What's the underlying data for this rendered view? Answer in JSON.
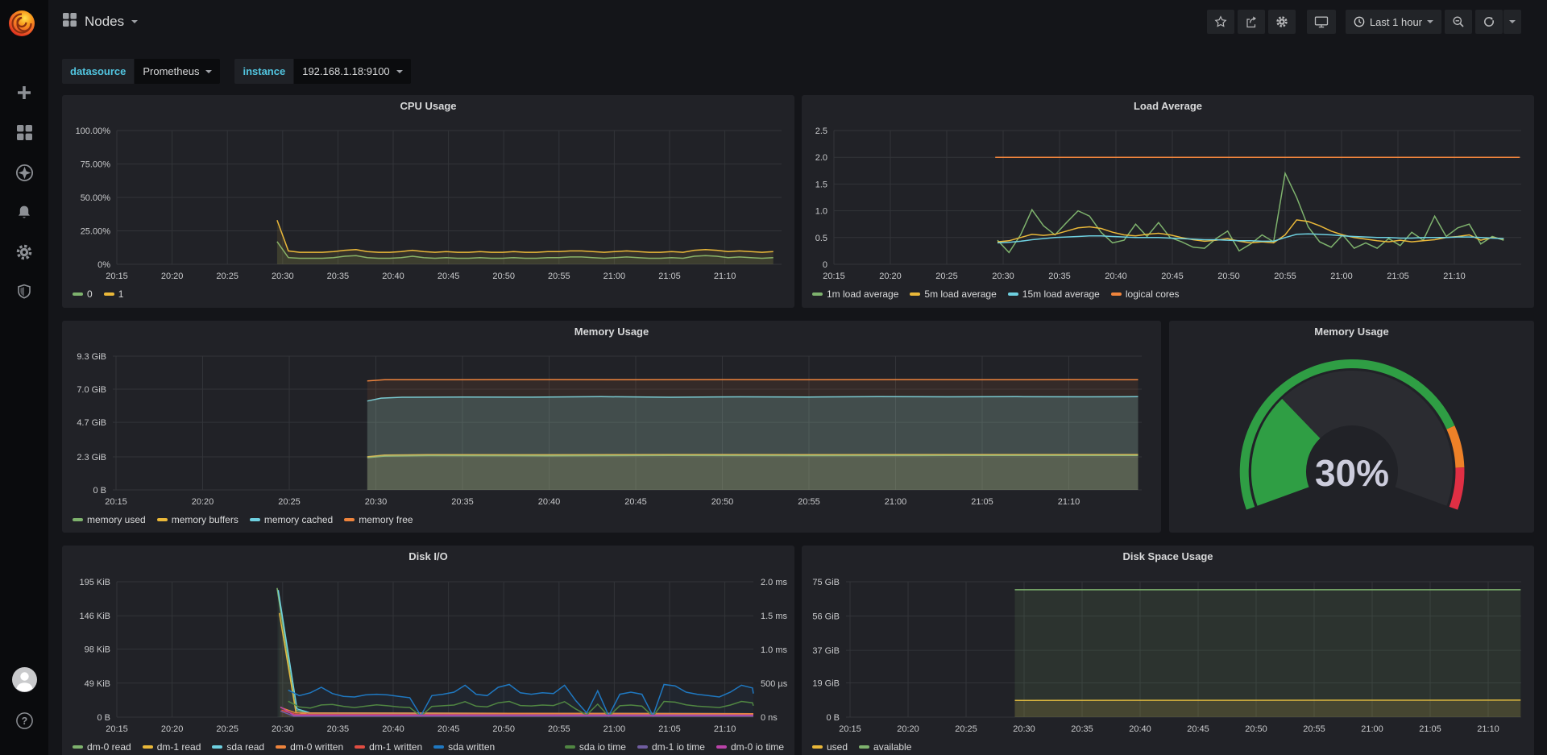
{
  "nav": {
    "title": "Nodes",
    "time_range": "Last 1 hour"
  },
  "variables": [
    {
      "label": "datasource",
      "value": "Prometheus"
    },
    {
      "label": "instance",
      "value": "192.168.1.18:9100"
    }
  ],
  "chart_data": [
    {
      "id": "cpu",
      "type": "line",
      "title": "CPU Usage",
      "ylim": [
        0,
        100
      ],
      "yticks": [
        {
          "label": "0%",
          "v": 0
        },
        {
          "label": "25.00%",
          "v": 25
        },
        {
          "label": "50.00%",
          "v": 50
        },
        {
          "label": "75.00%",
          "v": 75
        },
        {
          "label": "100.00%",
          "v": 100
        }
      ],
      "xlabels": [
        "20:15",
        "20:20",
        "20:25",
        "20:30",
        "20:35",
        "20:40",
        "20:45",
        "20:50",
        "20:55",
        "21:00",
        "21:05",
        "21:10"
      ],
      "series": [
        {
          "name": "0",
          "color": "#7EB26D",
          "fill": 0.1,
          "t0": 14.5,
          "dt": 1.02,
          "v": [
            17,
            5,
            4.5,
            4.5,
            4.5,
            5,
            6,
            6.5,
            5,
            4.5,
            4.5,
            5,
            6,
            5,
            4.5,
            5,
            4.5,
            4.5,
            5,
            4.5,
            4.5,
            5,
            4.5,
            4.5,
            5,
            5,
            5.5,
            5.5,
            5,
            4.5,
            5,
            5.5,
            5,
            4.5,
            4.5,
            5,
            4.5,
            6,
            6.5,
            6,
            5,
            5.5,
            5,
            4.5,
            5
          ]
        },
        {
          "name": "1",
          "color": "#EAB839",
          "fill": 0.1,
          "t0": 14.5,
          "dt": 1.02,
          "v": [
            33,
            10,
            9,
            9,
            9,
            9.5,
            10.5,
            11,
            9.5,
            9,
            9,
            9.5,
            10.5,
            9.5,
            9,
            9.5,
            9,
            9,
            9.5,
            9,
            9,
            9.5,
            9,
            9,
            9.5,
            9.5,
            10,
            10,
            9.5,
            9,
            9.5,
            10,
            9.5,
            9,
            9,
            9.5,
            9,
            10.5,
            11,
            10.5,
            9.5,
            10,
            9.5,
            9,
            9.5
          ]
        }
      ]
    },
    {
      "id": "load",
      "type": "line",
      "title": "Load Average",
      "ylim": [
        0,
        2.5
      ],
      "yticks": [
        {
          "label": "0",
          "v": 0
        },
        {
          "label": "0.5",
          "v": 0.5
        },
        {
          "label": "1.0",
          "v": 1
        },
        {
          "label": "1.5",
          "v": 1.5
        },
        {
          "label": "2.0",
          "v": 2
        },
        {
          "label": "2.5",
          "v": 2.5
        }
      ],
      "xlabels": [
        "20:15",
        "20:20",
        "20:25",
        "20:30",
        "20:35",
        "20:40",
        "20:45",
        "20:50",
        "20:55",
        "21:00",
        "21:05",
        "21:10"
      ],
      "series": [
        {
          "name": "1m load average",
          "color": "#7EB26D",
          "fill": 0,
          "t0": 14.5,
          "dt": 1.02,
          "v": [
            0.45,
            0.22,
            0.55,
            1.02,
            0.72,
            0.55,
            0.78,
            1.0,
            0.9,
            0.6,
            0.4,
            0.45,
            0.75,
            0.52,
            0.78,
            0.5,
            0.42,
            0.32,
            0.3,
            0.48,
            0.62,
            0.25,
            0.38,
            0.55,
            0.42,
            1.7,
            1.25,
            0.7,
            0.42,
            0.32,
            0.55,
            0.3,
            0.4,
            0.3,
            0.48,
            0.35,
            0.6,
            0.45,
            0.9,
            0.52,
            0.68,
            0.75,
            0.38,
            0.52,
            0.45
          ]
        },
        {
          "name": "5m load average",
          "color": "#EAB839",
          "fill": 0,
          "t0": 14.5,
          "dt": 1.02,
          "v": [
            0.42,
            0.44,
            0.5,
            0.56,
            0.54,
            0.56,
            0.62,
            0.68,
            0.7,
            0.67,
            0.6,
            0.55,
            0.53,
            0.56,
            0.58,
            0.55,
            0.5,
            0.46,
            0.43,
            0.45,
            0.48,
            0.43,
            0.4,
            0.42,
            0.4,
            0.55,
            0.83,
            0.8,
            0.72,
            0.62,
            0.55,
            0.5,
            0.47,
            0.44,
            0.42,
            0.45,
            0.42,
            0.44,
            0.46,
            0.5,
            0.52,
            0.55,
            0.45,
            0.5,
            0.47
          ]
        },
        {
          "name": "15m load average",
          "color": "#6ED0E0",
          "fill": 0,
          "t0": 14.5,
          "dt": 1.02,
          "v": [
            0.4,
            0.41,
            0.43,
            0.46,
            0.48,
            0.5,
            0.51,
            0.52,
            0.53,
            0.53,
            0.52,
            0.51,
            0.5,
            0.5,
            0.5,
            0.49,
            0.48,
            0.47,
            0.46,
            0.46,
            0.45,
            0.44,
            0.44,
            0.43,
            0.43,
            0.5,
            0.56,
            0.57,
            0.56,
            0.55,
            0.53,
            0.52,
            0.51,
            0.5,
            0.5,
            0.49,
            0.49,
            0.5,
            0.5,
            0.5,
            0.51,
            0.51,
            0.5,
            0.49,
            0.48
          ]
        },
        {
          "name": "logical cores",
          "color": "#EF843C",
          "fill": 0,
          "pairs": [
            [
              14.3,
              2
            ],
            [
              60.8,
              2
            ]
          ]
        }
      ]
    },
    {
      "id": "mem",
      "type": "line",
      "title": "Memory Usage",
      "ylim": [
        0,
        9.3
      ],
      "yticks": [
        {
          "label": "0 B",
          "v": 0
        },
        {
          "label": "2.3 GiB",
          "v": 2.3
        },
        {
          "label": "4.7 GiB",
          "v": 4.7
        },
        {
          "label": "7.0 GiB",
          "v": 7.0
        },
        {
          "label": "9.3 GiB",
          "v": 9.3
        }
      ],
      "xlabels": [
        "20:15",
        "20:20",
        "20:25",
        "20:30",
        "20:35",
        "20:40",
        "20:45",
        "20:50",
        "20:55",
        "21:00",
        "21:05",
        "21:10"
      ],
      "series": [
        {
          "name": "memory used",
          "color": "#7EB26D",
          "fill": 0.08,
          "pairs": [
            [
              14.5,
              2.24
            ],
            [
              15.5,
              2.35
            ],
            [
              18,
              2.38
            ],
            [
              25,
              2.37
            ],
            [
              32,
              2.39
            ],
            [
              40,
              2.38
            ],
            [
              48,
              2.39
            ],
            [
              59,
              2.39
            ]
          ]
        },
        {
          "name": "memory buffers",
          "color": "#EAB839",
          "fill": 0.12,
          "pairs": [
            [
              14.5,
              2.3
            ],
            [
              15.5,
              2.42
            ],
            [
              18,
              2.45
            ],
            [
              25,
              2.44
            ],
            [
              32,
              2.46
            ],
            [
              40,
              2.45
            ],
            [
              48,
              2.46
            ],
            [
              59,
              2.46
            ]
          ]
        },
        {
          "name": "memory cached",
          "color": "#6ED0E0",
          "fill": 0.22,
          "pairs": [
            [
              14.5,
              6.18
            ],
            [
              15.3,
              6.38
            ],
            [
              16.5,
              6.44
            ],
            [
              20,
              6.46
            ],
            [
              24,
              6.45
            ],
            [
              28,
              6.48
            ],
            [
              32,
              6.44
            ],
            [
              36,
              6.47
            ],
            [
              40,
              6.46
            ],
            [
              44,
              6.48
            ],
            [
              48,
              6.47
            ],
            [
              52,
              6.48
            ],
            [
              56,
              6.47
            ],
            [
              59,
              6.48
            ]
          ]
        },
        {
          "name": "memory free",
          "color": "#EF843C",
          "fill": 0.09,
          "pairs": [
            [
              14.5,
              7.58
            ],
            [
              15.5,
              7.66
            ],
            [
              20,
              7.66
            ],
            [
              25,
              7.67
            ],
            [
              30,
              7.66
            ],
            [
              35,
              7.67
            ],
            [
              40,
              7.66
            ],
            [
              45,
              7.67
            ],
            [
              50,
              7.66
            ],
            [
              55,
              7.67
            ],
            [
              59,
              7.66
            ]
          ]
        }
      ]
    },
    {
      "id": "gauge",
      "type": "gauge",
      "title": "Memory Usage",
      "value": 30,
      "display": "30%",
      "thresholds": [
        {
          "color": "#2f9e44",
          "to": 0.8
        },
        {
          "color": "#ED8128",
          "to": 0.9
        },
        {
          "color": "#E02F44",
          "to": 1.0
        }
      ]
    },
    {
      "id": "disk",
      "type": "line",
      "title": "Disk I/O",
      "ylim": [
        0,
        195
      ],
      "ylim_right": [
        0,
        2000
      ],
      "yticks": [
        {
          "label": "0 B",
          "v": 0
        },
        {
          "label": "49 KiB",
          "v": 49
        },
        {
          "label": "98 KiB",
          "v": 98
        },
        {
          "label": "146 KiB",
          "v": 146
        },
        {
          "label": "195 KiB",
          "v": 195
        }
      ],
      "yticks_right": [
        {
          "label": "0 ns",
          "v": 0
        },
        {
          "label": "500 µs",
          "v": 500
        },
        {
          "label": "1.0 ms",
          "v": 1000
        },
        {
          "label": "1.5 ms",
          "v": 1500
        },
        {
          "label": "2.0 ms",
          "v": 2000
        }
      ],
      "xlabels": [
        "20:15",
        "20:20",
        "20:25",
        "20:30",
        "20:35",
        "20:40",
        "20:45",
        "20:50",
        "20:55",
        "21:00",
        "21:05",
        "21:10"
      ],
      "series": [
        {
          "name": "dm-0 read",
          "color": "#7EB26D",
          "fill": 0.05,
          "pairs": [
            [
              14.5,
              186
            ],
            [
              16.2,
              10
            ],
            [
              17.5,
              5
            ],
            [
              57.6,
              4
            ]
          ]
        },
        {
          "name": "dm-1 read",
          "color": "#EAB839",
          "fill": 0.05,
          "pairs": [
            [
              14.7,
              150
            ],
            [
              16.2,
              7
            ],
            [
              17.5,
              3
            ],
            [
              57.6,
              3
            ]
          ]
        },
        {
          "name": "sda read",
          "color": "#6ED0E0",
          "fill": 0.05,
          "pairs": [
            [
              14.6,
              183
            ],
            [
              16.3,
              12
            ],
            [
              17.5,
              6
            ],
            [
              57.6,
              5
            ]
          ]
        },
        {
          "name": "dm-0 written",
          "color": "#EF843C",
          "fill": 0.05,
          "pairs": [
            [
              14.8,
              14
            ],
            [
              16.2,
              6
            ],
            [
              57.6,
              5
            ]
          ]
        },
        {
          "name": "dm-1 written",
          "color": "#E24D42",
          "fill": 0.05,
          "pairs": [
            [
              14.9,
              10
            ],
            [
              16.2,
              4
            ],
            [
              57.6,
              3
            ]
          ]
        },
        {
          "name": "sda written",
          "color": "#1F78C1",
          "fill": 0.05,
          "t0": 15.5,
          "dt": 1,
          "v": [
            39,
            31,
            35,
            43,
            34,
            30,
            29,
            32,
            33,
            32,
            30,
            28,
            2,
            31,
            33,
            36,
            46,
            33,
            31,
            43,
            47,
            35,
            33,
            35,
            34,
            46,
            24,
            6,
            38,
            2,
            33,
            36,
            33,
            2,
            47,
            45,
            36,
            33,
            31,
            29,
            36,
            46,
            42,
            34
          ]
        },
        {
          "name": "sda io time",
          "color": "#508642",
          "fill": 0,
          "axis": "R",
          "t0": 15.5,
          "dt": 1,
          "v": [
            235,
            150,
            135,
            180,
            188,
            160,
            142,
            162,
            182,
            168,
            150,
            142,
            12,
            158,
            168,
            178,
            228,
            162,
            152,
            212,
            232,
            172,
            165,
            178,
            172,
            228,
            122,
            32,
            192,
            12,
            168,
            178,
            162,
            12,
            232,
            222,
            182,
            162,
            152,
            142,
            178,
            232,
            212,
            168
          ]
        },
        {
          "name": "dm-1 io time",
          "color": "#705DA0",
          "fill": 0,
          "axis": "R",
          "pairs": [
            [
              14.8,
              90
            ],
            [
              16,
              15
            ],
            [
              57.6,
              15
            ]
          ]
        },
        {
          "name": "dm-0 io time",
          "color": "#BA43A9",
          "fill": 0,
          "axis": "R",
          "pairs": [
            [
              14.8,
              150
            ],
            [
              16,
              30
            ],
            [
              57.6,
              28
            ]
          ]
        }
      ],
      "legend_right_group": [
        "sda io time",
        "dm-1 io time",
        "dm-0 io time"
      ]
    },
    {
      "id": "space",
      "type": "line",
      "title": "Disk Space Usage",
      "ylim": [
        0,
        75
      ],
      "yticks": [
        {
          "label": "0 B",
          "v": 0
        },
        {
          "label": "19 GiB",
          "v": 19
        },
        {
          "label": "37 GiB",
          "v": 37
        },
        {
          "label": "56 GiB",
          "v": 56
        },
        {
          "label": "75 GiB",
          "v": 75
        }
      ],
      "xlabels": [
        "20:15",
        "20:20",
        "20:25",
        "20:30",
        "20:35",
        "20:40",
        "20:45",
        "20:50",
        "20:55",
        "21:00",
        "21:05",
        "21:10"
      ],
      "series": [
        {
          "name": "used",
          "color": "#EAB839",
          "fill": 0.15,
          "pairs": [
            [
              14.2,
              9.3
            ],
            [
              57.8,
              9.4
            ]
          ]
        },
        {
          "name": "available",
          "color": "#7EB26D",
          "fill": 0.12,
          "pairs": [
            [
              14.2,
              70.6
            ],
            [
              57.8,
              70.6
            ]
          ]
        }
      ]
    }
  ]
}
